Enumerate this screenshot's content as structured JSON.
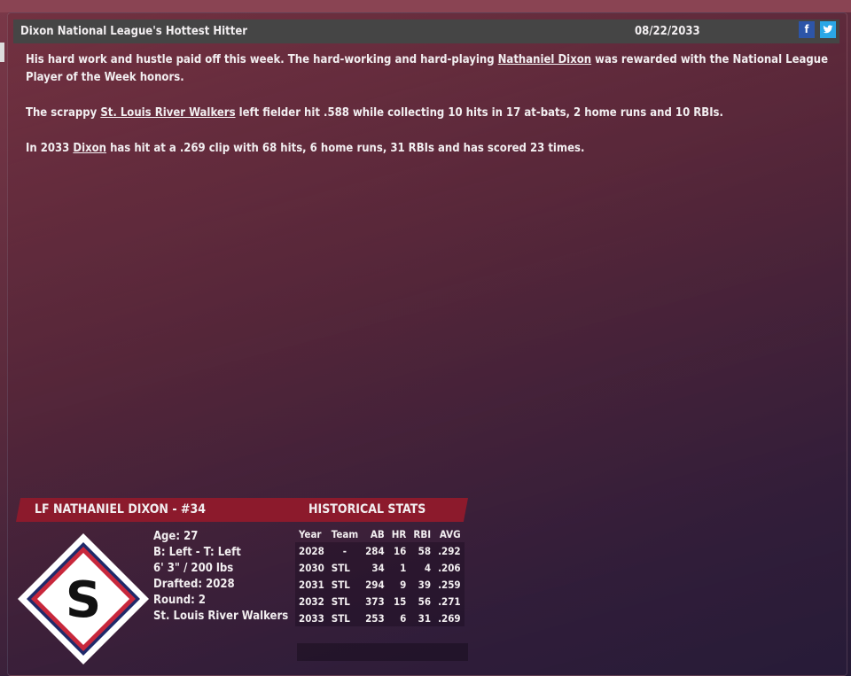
{
  "article": {
    "headline": "Dixon National League's Hottest Hitter",
    "date": "08/22/2033",
    "share": {
      "facebook_icon": "f",
      "twitter_icon": "t"
    },
    "p1_pre": "His hard work and hustle paid off this week. The hard-working and hard-playing ",
    "p1_link": "Nathaniel Dixon",
    "p1_post": " was rewarded with the National League Player of the Week honors.",
    "p2_pre": "The scrappy ",
    "p2_link": "St. Louis River Walkers",
    "p2_post": " left fielder hit .588 while collecting 10 hits in 17 at-bats, 2 home runs and 10 RBIs.",
    "p3_pre": "In 2033 ",
    "p3_link": "Dixon",
    "p3_post": " has hit at a .269 clip with 68 hits, 6 home runs, 31 RBIs and has scored 23 times."
  },
  "player": {
    "title": "LF NATHANIEL DIXON - #34",
    "logo_letter": "S",
    "bio": [
      "Age: 27",
      "B: Left - T: Left",
      "6' 3\" / 200 lbs",
      "Drafted: 2028",
      "Round: 2",
      "St. Louis River Walkers"
    ]
  },
  "stats": {
    "title": "HISTORICAL STATS",
    "columns": [
      "Year",
      "Team",
      "AB",
      "HR",
      "RBI",
      "AVG"
    ],
    "rows": [
      [
        "2028",
        "-",
        "284",
        "16",
        "58",
        ".292"
      ],
      [
        "2030",
        "STL",
        "34",
        "1",
        "4",
        ".206"
      ],
      [
        "2031",
        "STL",
        "294",
        "9",
        "39",
        ".259"
      ],
      [
        "2032",
        "STL",
        "373",
        "15",
        "56",
        ".271"
      ],
      [
        "2033",
        "STL",
        "253",
        "6",
        "31",
        ".269"
      ]
    ]
  }
}
